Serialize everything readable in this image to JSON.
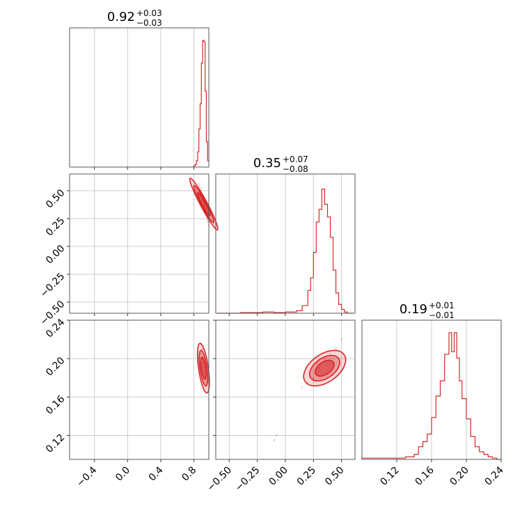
{
  "chart_data": [
    {
      "type": "histogram",
      "panel": "1D marginal, parameter 1",
      "title": {
        "value": "0.92",
        "plus": "+0.03",
        "minus": "−0.03"
      },
      "xlim": [
        -0.7,
        0.98
      ],
      "grid": true,
      "color": "#d62728",
      "bins": [
        0.785,
        0.8,
        0.815,
        0.83,
        0.845,
        0.86,
        0.875,
        0.89,
        0.905,
        0.92,
        0.935,
        0.95,
        0.965,
        0.98
      ],
      "counts": [
        0,
        0.01,
        0.02,
        0.05,
        0.12,
        0.3,
        0.5,
        0.82,
        1.0,
        0.99,
        0.6,
        0.2,
        0.05
      ]
    },
    {
      "type": "scatter",
      "panel": "2D, parameter 2 vs parameter 1",
      "xlim": [
        -0.7,
        0.98
      ],
      "ylim": [
        -0.6,
        0.65
      ],
      "yticks": [
        "0.50",
        "0.25",
        "0.00",
        "−0.25",
        "−0.50"
      ],
      "yticks_values": [
        0.5,
        0.25,
        0.0,
        -0.25,
        -0.5
      ],
      "points": [
        [
          0.86,
          0.56
        ],
        [
          0.88,
          0.5
        ],
        [
          0.9,
          0.45
        ],
        [
          0.92,
          0.4
        ],
        [
          0.93,
          0.37
        ],
        [
          0.94,
          0.33
        ],
        [
          0.95,
          0.3
        ],
        [
          0.96,
          0.27
        ],
        [
          0.9,
          0.47
        ],
        [
          0.91,
          0.42
        ],
        [
          0.93,
          0.35
        ],
        [
          0.97,
          0.22
        ],
        [
          0.98,
          0.19
        ],
        [
          0.89,
          0.52
        ],
        [
          0.87,
          0.54
        ],
        [
          0.94,
          0.29
        ],
        [
          0.92,
          0.38
        ],
        [
          0.96,
          0.24
        ]
      ],
      "contour_center": [
        0.92,
        0.38
      ]
    },
    {
      "type": "histogram",
      "panel": "1D marginal, parameter 2",
      "title": {
        "value": "0.35",
        "plus": "+0.07",
        "minus": "−0.08"
      },
      "xlim": [
        -0.62,
        0.62
      ],
      "grid": true,
      "color": "#d62728",
      "bins": [
        -0.6,
        -0.5,
        -0.4,
        -0.3,
        -0.2,
        -0.1,
        0.0,
        0.1,
        0.15,
        0.2,
        0.225,
        0.25,
        0.275,
        0.3,
        0.325,
        0.35,
        0.375,
        0.4,
        0.425,
        0.45,
        0.475,
        0.5,
        0.525,
        0.55,
        0.6
      ],
      "counts": [
        0,
        0,
        0.005,
        0.005,
        0.01,
        0.005,
        0.01,
        0.02,
        0.06,
        0.18,
        0.28,
        0.48,
        0.72,
        0.82,
        0.98,
        0.86,
        0.76,
        0.6,
        0.34,
        0.16,
        0.07,
        0.03,
        0.01,
        0.0
      ]
    },
    {
      "type": "scatter",
      "panel": "2D, parameter 3 vs parameter 1",
      "xlim": [
        -0.7,
        0.98
      ],
      "ylim": [
        0.095,
        0.24
      ],
      "yticks": [
        "0.24",
        "0.20",
        "0.16",
        "0.12"
      ],
      "yticks_values": [
        0.24,
        0.2,
        0.16,
        0.12
      ],
      "xticks": [
        "−0.4",
        "0.0",
        "0.4",
        "0.8"
      ],
      "xticks_values": [
        -0.4,
        0.0,
        0.4,
        0.8
      ],
      "points": [
        [
          0.89,
          0.2
        ],
        [
          0.9,
          0.19
        ],
        [
          0.91,
          0.185
        ],
        [
          0.92,
          0.195
        ],
        [
          0.88,
          0.205
        ],
        [
          0.93,
          0.18
        ],
        [
          0.94,
          0.175
        ],
        [
          0.9,
          0.21
        ],
        [
          0.91,
          0.2
        ],
        [
          0.92,
          0.17
        ],
        [
          0.89,
          0.215
        ],
        [
          0.95,
          0.172
        ]
      ],
      "contour_center": [
        0.915,
        0.19
      ]
    },
    {
      "type": "scatter",
      "panel": "2D, parameter 3 vs parameter 2",
      "xlim": [
        -0.62,
        0.62
      ],
      "ylim": [
        0.095,
        0.24
      ],
      "xticks": [
        "−0.50",
        "−0.25",
        "0.00",
        "0.25",
        "0.50"
      ],
      "xticks_values": [
        -0.5,
        -0.25,
        0.0,
        0.25,
        0.5
      ],
      "points": [
        [
          0.3,
          0.19
        ],
        [
          0.35,
          0.2
        ],
        [
          0.4,
          0.205
        ],
        [
          0.25,
          0.18
        ],
        [
          0.2,
          0.175
        ],
        [
          0.45,
          0.21
        ],
        [
          0.38,
          0.185
        ],
        [
          0.28,
          0.195
        ],
        [
          0.5,
          0.22
        ],
        [
          0.15,
          0.17
        ],
        [
          -0.1,
          0.115
        ],
        [
          -0.08,
          0.12
        ]
      ],
      "contour_center": [
        0.35,
        0.19
      ]
    },
    {
      "type": "histogram",
      "panel": "1D marginal, parameter 3",
      "title": {
        "value": "0.19",
        "plus": "+0.01",
        "minus": "−0.01"
      },
      "xlim": [
        0.08,
        0.24
      ],
      "grid": true,
      "color": "#d62728",
      "xticks": [
        "0.12",
        "0.16",
        "0.20",
        "0.24"
      ],
      "xticks_values": [
        0.12,
        0.16,
        0.2,
        0.24
      ],
      "bins": [
        0.08,
        0.1,
        0.12,
        0.13,
        0.14,
        0.145,
        0.15,
        0.155,
        0.16,
        0.165,
        0.17,
        0.175,
        0.18,
        0.183,
        0.186,
        0.189,
        0.192,
        0.195,
        0.2,
        0.205,
        0.21,
        0.215,
        0.22,
        0.225,
        0.23,
        0.235,
        0.24
      ],
      "counts": [
        0.01,
        0.01,
        0.01,
        0.02,
        0.04,
        0.1,
        0.14,
        0.2,
        0.33,
        0.5,
        0.62,
        0.83,
        1.0,
        0.85,
        1.0,
        0.8,
        0.62,
        0.48,
        0.32,
        0.18,
        0.1,
        0.06,
        0.04,
        0.02,
        0.01,
        0.0
      ]
    }
  ]
}
